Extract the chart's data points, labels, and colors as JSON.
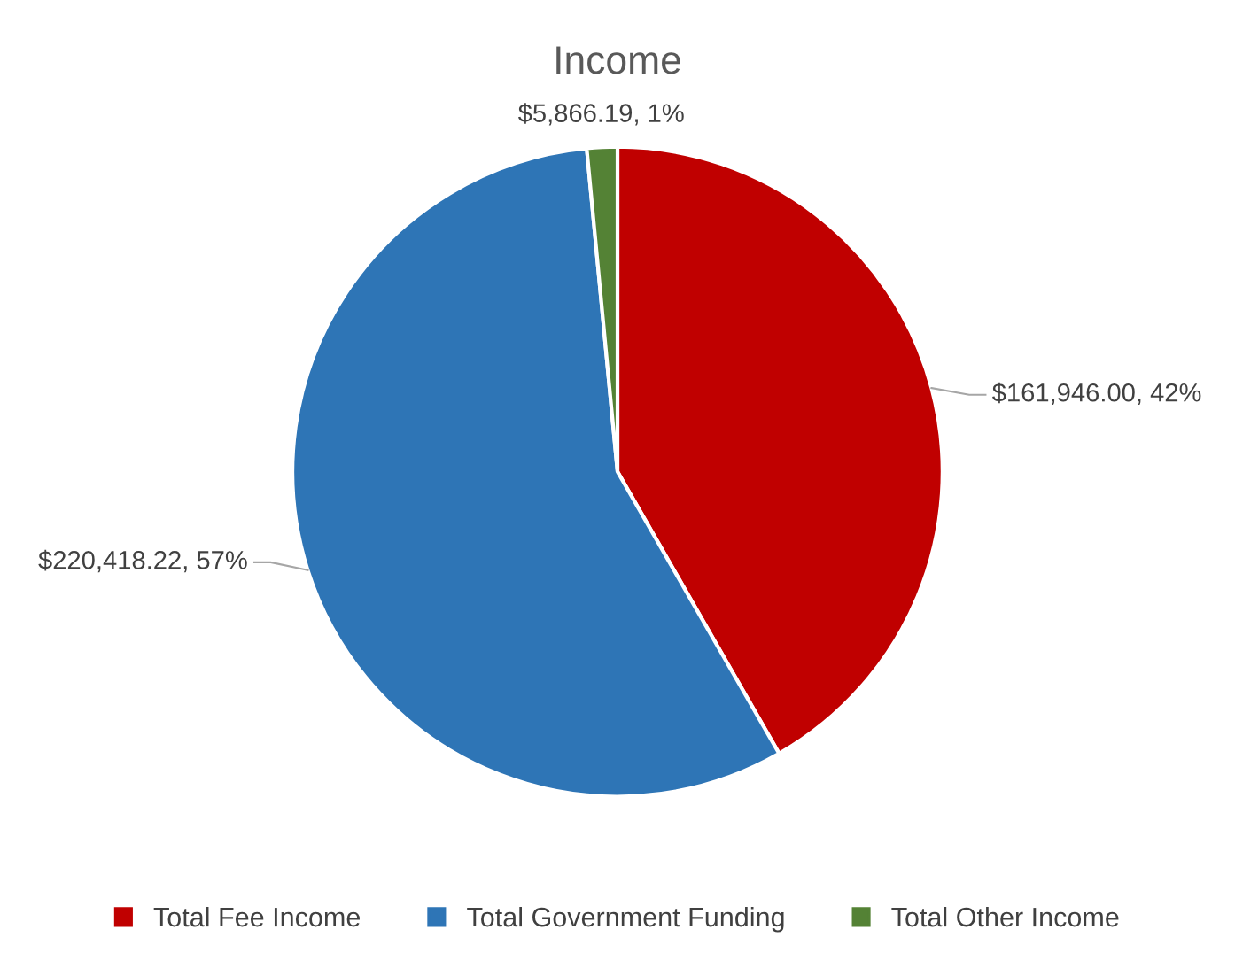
{
  "chart_data": {
    "type": "pie",
    "title": "Income",
    "categories": [
      "Total Fee Income",
      "Total Government Funding",
      "Total Other Income"
    ],
    "values": [
      161946.0,
      220418.22,
      5866.19
    ],
    "colors": [
      "#c00000",
      "#2e75b6",
      "#548235"
    ],
    "value_labels": [
      "$161,946.00, 42%",
      "$220,418.22, 57%",
      "$5,866.19, 1%"
    ],
    "legend": "bottom"
  }
}
